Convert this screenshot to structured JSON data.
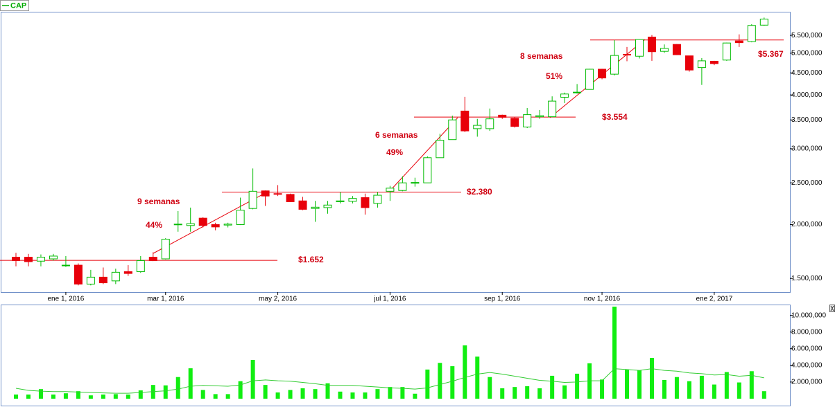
{
  "chart_data": [
    {
      "type": "candlestick",
      "name": "CAP",
      "legend_color": "#00aa00",
      "up_color": "#00bb00",
      "down_color": "#e8000a",
      "log_scale": true,
      "categories": [
        null,
        null,
        null,
        null,
        "ene 1, 2016",
        null,
        null,
        null,
        null,
        null,
        null,
        null,
        "mar 1, 2016",
        null,
        null,
        null,
        null,
        null,
        null,
        null,
        null,
        "may 2, 2016",
        null,
        null,
        null,
        null,
        null,
        null,
        null,
        null,
        "jul 1, 2016",
        null,
        null,
        null,
        null,
        null,
        null,
        null,
        null,
        "sep 1, 2016",
        null,
        null,
        null,
        null,
        null,
        null,
        null,
        "nov 1, 2016",
        null,
        null,
        null,
        null,
        null,
        null,
        null,
        null,
        "ene 2, 2017",
        null,
        null,
        null,
        null
      ],
      "open": [
        1680,
        1680,
        1645,
        1665,
        1608,
        1610,
        1455,
        1510,
        1480,
        1555,
        1555,
        1680,
        1665,
        2000,
        1990,
        2070,
        2000,
        1995,
        2000,
        2180,
        2395,
        2360,
        2350,
        2270,
        2180,
        2190,
        2260,
        2265,
        2310,
        2240,
        2390,
        2400,
        2495,
        2500,
        2860,
        3150,
        3670,
        3340,
        3340,
        3590,
        3530,
        3370,
        3560,
        3560,
        3950,
        4050,
        4120,
        4590,
        4470,
        4970,
        4920,
        5450,
        5050,
        5240,
        4930,
        4630,
        4790,
        4820,
        5340,
        5320,
        5810
      ],
      "high": [
        1720,
        1710,
        1705,
        1710,
        1690,
        1625,
        1570,
        1590,
        1580,
        1610,
        1690,
        1725,
        1860,
        2150,
        2190,
        2080,
        2020,
        2020,
        2310,
        2700,
        2400,
        2470,
        2360,
        2320,
        2270,
        2270,
        2380,
        2330,
        2360,
        2380,
        2460,
        2590,
        2570,
        2880,
        3250,
        3580,
        3960,
        3520,
        3720,
        3600,
        3550,
        3730,
        3690,
        3970,
        4050,
        4240,
        4600,
        4600,
        5360,
        5170,
        5390,
        5510,
        5240,
        5250,
        4930,
        4870,
        4800,
        5290,
        5530,
        5840,
        6050
      ],
      "low": [
        1600,
        1600,
        1600,
        1650,
        1595,
        1445,
        1445,
        1455,
        1455,
        1520,
        1545,
        1645,
        1660,
        1925,
        1925,
        1970,
        1940,
        1970,
        1995,
        2170,
        2210,
        2330,
        2255,
        2160,
        2030,
        2120,
        2240,
        2240,
        2110,
        2190,
        2270,
        2390,
        2450,
        2500,
        2860,
        3150,
        3280,
        3200,
        3300,
        3520,
        3360,
        3350,
        3520,
        3550,
        3830,
        4030,
        4120,
        4350,
        4440,
        4790,
        4860,
        4800,
        5010,
        4950,
        4530,
        4220,
        4690,
        4800,
        5170,
        5300,
        5790
      ],
      "close": [
        1650,
        1640,
        1680,
        1690,
        1610,
        1455,
        1510,
        1465,
        1550,
        1540,
        1650,
        1650,
        1850,
        2005,
        2010,
        1990,
        1975,
        2005,
        2160,
        2390,
        2330,
        2355,
        2260,
        2170,
        2195,
        2220,
        2270,
        2300,
        2190,
        2340,
        2430,
        2500,
        2505,
        2860,
        3140,
        3500,
        3300,
        3400,
        3520,
        3550,
        3380,
        3600,
        3580,
        3870,
        4020,
        4060,
        4590,
        4380,
        4940,
        4950,
        5380,
        5040,
        5130,
        4960,
        4570,
        4800,
        4730,
        5280,
        5290,
        5800,
        6000
      ],
      "ylim": [
        1394,
        6240
      ],
      "yticks": [
        {
          "value": 1500,
          "label": "1.500,000"
        },
        {
          "value": 2000,
          "label": "2.000,000"
        },
        {
          "value": 2500,
          "label": "2.500,000"
        },
        {
          "value": 3000,
          "label": "3.000,000"
        },
        {
          "value": 3500,
          "label": "3.500,000"
        },
        {
          "value": 4000,
          "label": "4.000,000"
        },
        {
          "value": 4500,
          "label": "4.500,000"
        },
        {
          "value": 5000,
          "label": "5.000,000"
        },
        {
          "value": 5500,
          "label": "5.500,000"
        }
      ],
      "levels": [
        {
          "value": 1652,
          "label": "$1.652"
        },
        {
          "value": 2380,
          "label": "$2.380"
        },
        {
          "value": 3554,
          "label": "$3.554"
        },
        {
          "value": 5367,
          "label": "$5.367"
        }
      ],
      "level_color": "#e8000a",
      "annotations": [
        "9 semanas",
        "44%",
        "6 semanas",
        "49%",
        "8 semanas",
        "51%"
      ]
    },
    {
      "type": "bar",
      "color": "#11ee11",
      "values": [
        500,
        500,
        1150,
        500,
        650,
        900,
        400,
        500,
        550,
        500,
        1000,
        1650,
        1600,
        2600,
        3650,
        1050,
        550,
        550,
        2100,
        4650,
        1650,
        750,
        1050,
        1250,
        1150,
        1850,
        850,
        750,
        750,
        1150,
        1400,
        1400,
        600,
        3500,
        4300,
        3900,
        6400,
        5050,
        2600,
        1250,
        1400,
        1500,
        1250,
        2750,
        1600,
        3000,
        4250,
        2300,
        11050,
        3500,
        3400,
        4900,
        2250,
        2600,
        2100,
        2750,
        1700,
        3200,
        1950,
        3300,
        900
      ],
      "average": {
        "color": "#33cc33",
        "values": [
          1250,
          1000,
          900,
          850,
          850,
          800,
          750,
          700,
          650,
          650,
          750,
          850,
          950,
          1150,
          1500,
          1600,
          1550,
          1500,
          1650,
          2150,
          2250,
          2150,
          2100,
          1950,
          1800,
          1600,
          1600,
          1600,
          1500,
          1400,
          1300,
          1250,
          1150,
          1300,
          1700,
          2100,
          2550,
          2950,
          3150,
          2950,
          2700,
          2450,
          2200,
          2100,
          1950,
          2000,
          2150,
          2150,
          3600,
          3500,
          3400,
          3600,
          3400,
          3300,
          3100,
          3000,
          2850,
          2900,
          2700,
          2800,
          2500
        ]
      },
      "ylim": [
        0,
        11300
      ],
      "yticks": [
        {
          "value": 2000,
          "label": "2.000,000"
        },
        {
          "value": 4000,
          "label": "4.000,000"
        },
        {
          "value": 6000,
          "label": "6.000,000"
        },
        {
          "value": 8000,
          "label": "8.000,000"
        },
        {
          "value": 10000,
          "label": "10.000,000"
        }
      ]
    }
  ]
}
